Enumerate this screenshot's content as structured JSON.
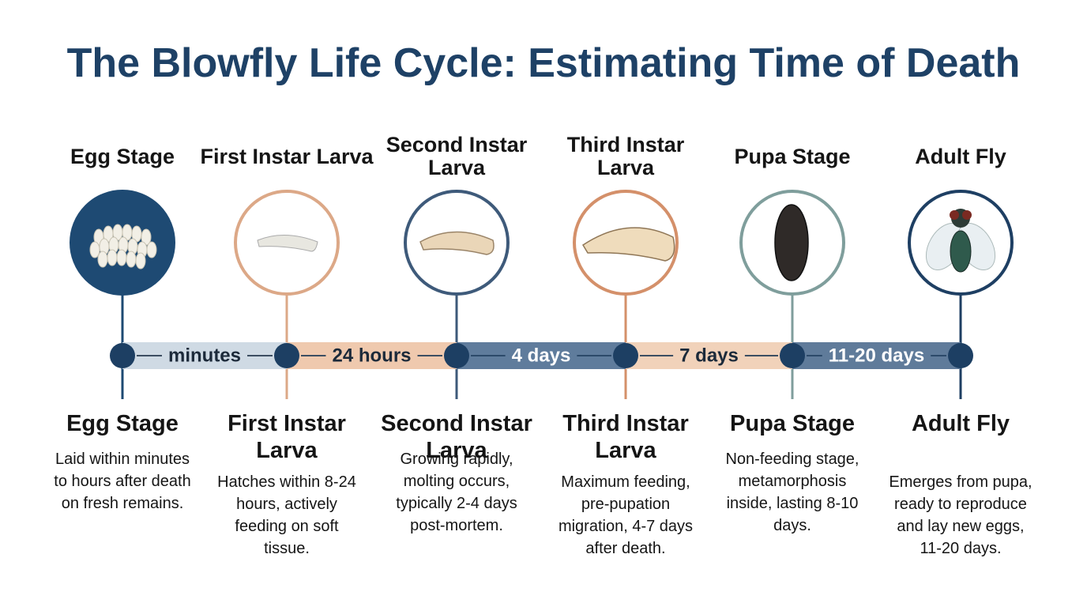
{
  "title": "The Blowfly Life Cycle: Estimating Time of Death",
  "stages": [
    {
      "label": "Egg Stage",
      "description": "Laid within minutes to hours after death on fresh remains."
    },
    {
      "label": "First Instar Larva",
      "description": "Hatches within 8-24 hours, actively feeding on soft tissue."
    },
    {
      "label": "Second Instar Larva",
      "description": "Growing rapidly, molting occurs, typically 2-4 days post-mortem."
    },
    {
      "label": "Third Instar Larva",
      "description": "Maximum feeding, pre-pupation migration, 4-7 days after death."
    },
    {
      "label": "Pupa Stage",
      "description": "Non-feeding stage, metamorphosis inside, lasting 8-10 days."
    },
    {
      "label": "Adult Fly",
      "description": "Emerges from pupa, ready to reproduce and lay new eggs, 11-20 days."
    }
  ],
  "intervals": [
    "minutes",
    "24 hours",
    "4 days",
    "7 days",
    "11-20 days"
  ]
}
